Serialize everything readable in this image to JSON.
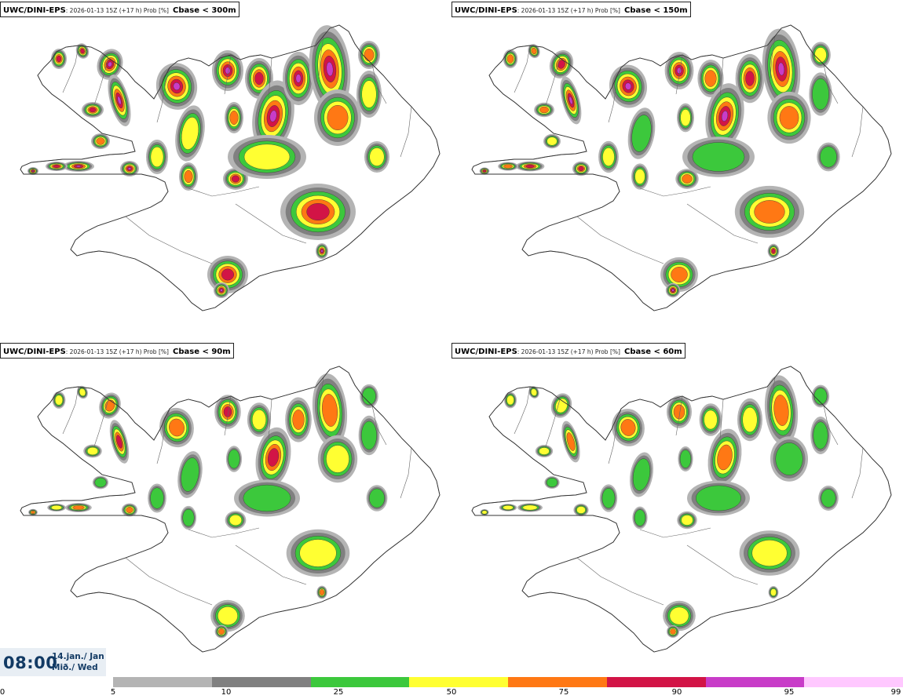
{
  "panels": [
    {
      "id": "p1",
      "model": "UWC/DINI-EPS",
      "meta": ": 2026-01-13 15Z (+17 h) Prob [%]",
      "threshold": "Cbase < 300m",
      "intensity": 1.0
    },
    {
      "id": "p2",
      "model": "UWC/DINI-EPS",
      "meta": ": 2026-01-13 15Z (+17 h) Prob [%]",
      "threshold": "Cbase < 150m",
      "intensity": 0.8
    },
    {
      "id": "p3",
      "model": "UWC/DINI-EPS",
      "meta": ": 2026-01-13 15Z (+17 h) Prob [%]",
      "threshold": "Cbase < 90m",
      "intensity": 0.6
    },
    {
      "id": "p4",
      "model": "UWC/DINI-EPS",
      "meta": ": 2026-01-13 15Z (+17 h) Prob [%]",
      "threshold": "Cbase < 60m",
      "intensity": 0.5
    }
  ],
  "time": {
    "clock": "08:00",
    "date_line1": "14.jan./ Jan",
    "date_line2": "Mið./ Wed"
  },
  "legend": {
    "ticks": [
      "0",
      "5",
      "10",
      "25",
      "50",
      "75",
      "90",
      "95",
      "99"
    ],
    "colors": [
      "#b4b4b4",
      "#808080",
      "#3cc83c",
      "#ffff32",
      "#ff7814",
      "#d21446",
      "#c83cc8",
      "#ffc8ff"
    ]
  }
}
